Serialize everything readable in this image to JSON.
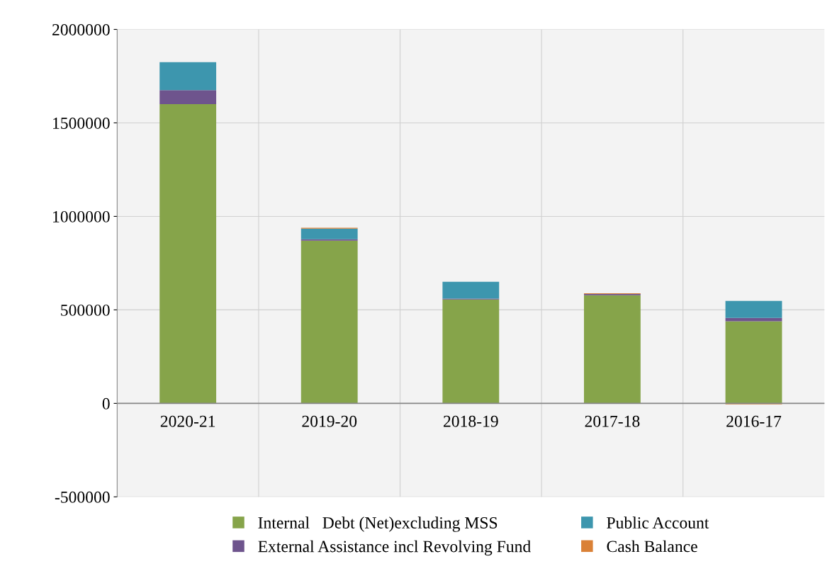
{
  "chart_data": {
    "type": "bar",
    "stacked": true,
    "categories": [
      "2020-21",
      "2019-20",
      "2018-19",
      "2017-18",
      "2016-17"
    ],
    "series": [
      {
        "name": "Internal   Debt (Net)excluding MSS",
        "color": "#86a44a",
        "values": [
          1600000,
          870000,
          556000,
          578000,
          439000
        ]
      },
      {
        "name": "External Assistance incl Revolving Fund",
        "color": "#6e548d",
        "values": [
          75000,
          8000,
          4000,
          7000,
          18000
        ]
      },
      {
        "name": "Public Account",
        "color": "#3d96ae",
        "values": [
          150000,
          56000,
          90000,
          0,
          91000
        ]
      },
      {
        "name": "Cash Balance",
        "color": "#da8137",
        "values": [
          0,
          5000,
          0,
          4000,
          -5000
        ]
      }
    ],
    "ylim": [
      -500000,
      2000000
    ],
    "yticks": [
      -500000,
      0,
      500000,
      1000000,
      1500000,
      2000000
    ],
    "grid": true,
    "legend": "bottom"
  }
}
